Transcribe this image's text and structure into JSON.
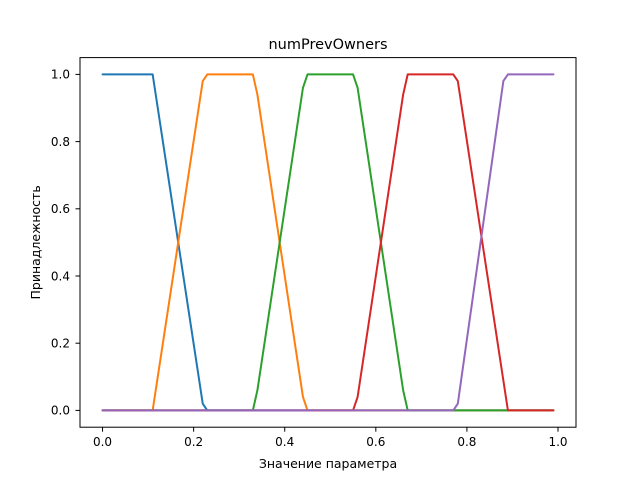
{
  "chart_data": {
    "type": "line",
    "title": "numPrevOwners",
    "xlabel": "Значение параметра",
    "ylabel": "Принадлежность",
    "xlim": [
      -0.0495,
      1.0395
    ],
    "ylim": [
      -0.05,
      1.05
    ],
    "xticks": [
      {
        "value": 0.0,
        "label": "0.0"
      },
      {
        "value": 0.2,
        "label": "0.2"
      },
      {
        "value": 0.4,
        "label": "0.4"
      },
      {
        "value": 0.6,
        "label": "0.6"
      },
      {
        "value": 0.8,
        "label": "0.8"
      },
      {
        "value": 1.0,
        "label": "1.0"
      }
    ],
    "yticks": [
      {
        "value": 0.0,
        "label": "0.0"
      },
      {
        "value": 0.2,
        "label": "0.2"
      },
      {
        "value": 0.4,
        "label": "0.4"
      },
      {
        "value": 0.6,
        "label": "0.6"
      },
      {
        "value": 0.8,
        "label": "0.8"
      },
      {
        "value": 1.0,
        "label": "1.0"
      }
    ],
    "grid": false,
    "series": [
      {
        "color": "#1f77b4",
        "x": [
          0.0,
          0.11,
          0.22,
          0.23,
          0.99
        ],
        "y": [
          1,
          1,
          0.02,
          0,
          0
        ]
      },
      {
        "color": "#ff7f0e",
        "x": [
          0.0,
          0.11,
          0.22,
          0.23,
          0.33,
          0.34,
          0.44,
          0.45,
          0.99
        ],
        "y": [
          0,
          0,
          0.98,
          1,
          1,
          0.94,
          0.04,
          0,
          0
        ]
      },
      {
        "color": "#2ca02c",
        "x": [
          0.0,
          0.33,
          0.34,
          0.44,
          0.45,
          0.55,
          0.56,
          0.66,
          0.67,
          0.99
        ],
        "y": [
          0,
          0,
          0.06,
          0.96,
          1,
          1,
          0.96,
          0.06,
          0,
          0
        ]
      },
      {
        "color": "#d62728",
        "x": [
          0.0,
          0.55,
          0.56,
          0.66,
          0.67,
          0.77,
          0.78,
          0.89,
          0.99
        ],
        "y": [
          0,
          0,
          0.04,
          0.94,
          1,
          1,
          0.98,
          0,
          0
        ]
      },
      {
        "color": "#9467bd",
        "x": [
          0.0,
          0.77,
          0.78,
          0.88,
          0.89,
          0.99
        ],
        "y": [
          0,
          0,
          0.02,
          0.98,
          1,
          1
        ]
      }
    ]
  }
}
